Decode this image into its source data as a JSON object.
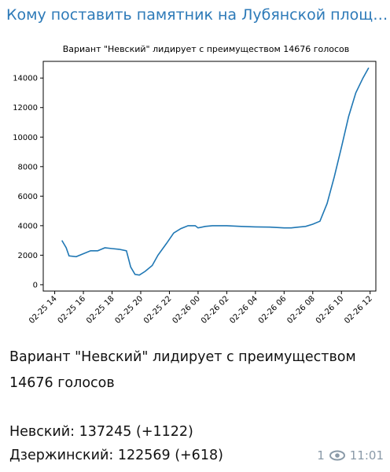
{
  "header": {
    "title": "Кому поставить памятник на Лубянской площ…"
  },
  "chart_data": {
    "type": "line",
    "title": "Вариант \"Невский\" лидирует с преимуществом 14676 голосов",
    "x": [
      14.5,
      14.8,
      15.0,
      15.5,
      16.0,
      16.5,
      17.0,
      17.5,
      18.0,
      18.5,
      19.0,
      19.3,
      19.6,
      19.9,
      20.3,
      20.8,
      21.2,
      21.8,
      22.3,
      22.8,
      23.3,
      23.8,
      24.0,
      24.5,
      25.0,
      26.0,
      27.0,
      28.0,
      29.0,
      30.0,
      30.5,
      31.0,
      31.5,
      32.0,
      32.5,
      33.0,
      33.5,
      34.0,
      34.5,
      35.0,
      35.5,
      35.9
    ],
    "series": [
      {
        "name": "Невский",
        "color": "#1f77b4",
        "values": [
          3000,
          2500,
          1950,
          1900,
          2100,
          2300,
          2300,
          2500,
          2450,
          2400,
          2300,
          1200,
          700,
          650,
          900,
          1300,
          2000,
          2800,
          3500,
          3800,
          4000,
          4000,
          3850,
          3950,
          4000,
          4000,
          3950,
          3920,
          3900,
          3850,
          3850,
          3900,
          3950,
          4100,
          4300,
          5500,
          7300,
          9300,
          11400,
          13000,
          14000,
          14700
        ]
      }
    ],
    "xlim": [
      13.2,
      36.4
    ],
    "xticks": [
      {
        "value": 14,
        "label": "02-25 14"
      },
      {
        "value": 16,
        "label": "02-25 16"
      },
      {
        "value": 18,
        "label": "02-25 18"
      },
      {
        "value": 20,
        "label": "02-25 20"
      },
      {
        "value": 22,
        "label": "02-25 22"
      },
      {
        "value": 24,
        "label": "02-26 00"
      },
      {
        "value": 26,
        "label": "02-26 02"
      },
      {
        "value": 28,
        "label": "02-26 04"
      },
      {
        "value": 30,
        "label": "02-26 06"
      },
      {
        "value": 32,
        "label": "02-26 08"
      },
      {
        "value": 34,
        "label": "02-26 10"
      },
      {
        "value": 36,
        "label": "02-26 12"
      }
    ],
    "ylim": [
      -430,
      15130
    ],
    "yticks": [
      0,
      2000,
      4000,
      6000,
      8000,
      10000,
      12000,
      14000
    ],
    "grid": false
  },
  "message": {
    "text": "Вариант \"Невский\" лидирует с преимуществом 14676 голосов",
    "lines": [
      "Невский: 137245 (+1122)",
      "Дзержинский: 122569 (+618)"
    ]
  },
  "footer": {
    "views": "1",
    "time": "11:01"
  }
}
